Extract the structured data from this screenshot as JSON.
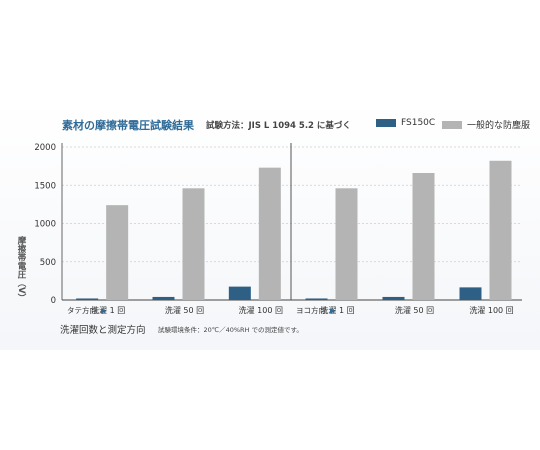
{
  "title": "素材の摩擦帯電圧試験結果",
  "method": "試験方法：JIS L 1094 5.2 に基づく",
  "ylabel": "摩擦帯電圧（V）",
  "xtitle": "洗濯回数と測定方向",
  "note": "試験環境条件：20℃／40%RH での測定値です。",
  "colors": {
    "fs150c": "#2e5f85",
    "general": "#b4b4b4"
  },
  "chart_data": {
    "type": "bar",
    "title": "素材の摩擦帯電圧試験結果",
    "ylabel": "摩擦帯電圧（V）",
    "xlabel": "洗濯回数と測定方向",
    "ylim": [
      0,
      2000
    ],
    "yticks": [
      "0",
      "500",
      "1000",
      "1500",
      "2000"
    ],
    "grid": true,
    "legend": "top-right",
    "groups": [
      {
        "name": "タテ方向",
        "categories": [
          "洗濯 1 回",
          "洗濯 50 回",
          "洗濯 100 回"
        ],
        "series": [
          {
            "name": "FS150C",
            "values": [
              20,
              40,
              175
            ]
          },
          {
            "name": "一般的な防塵服",
            "values": [
              1240,
              1460,
              1730
            ]
          }
        ]
      },
      {
        "name": "ヨコ方向",
        "categories": [
          "洗濯 1 回",
          "洗濯 50 回",
          "洗濯 100 回"
        ],
        "series": [
          {
            "name": "FS150C",
            "values": [
              20,
              40,
              165
            ]
          },
          {
            "name": "一般的な防塵服",
            "values": [
              1460,
              1660,
              1820
            ]
          }
        ]
      }
    ]
  }
}
